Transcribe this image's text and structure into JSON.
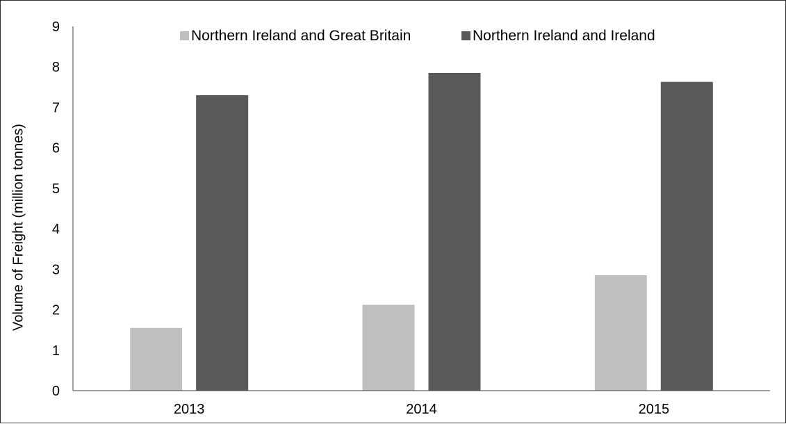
{
  "chart_data": {
    "type": "bar",
    "title": "",
    "xlabel": "",
    "ylabel": "Volume of Freight (million tonnes)",
    "categories": [
      "2013",
      "2014",
      "2015"
    ],
    "series": [
      {
        "name": "Northern Ireland and Great Britain",
        "color": "#bfbfbf",
        "values": [
          1.55,
          2.12,
          2.85
        ]
      },
      {
        "name": "Northern Ireland and Ireland",
        "color": "#595959",
        "values": [
          7.3,
          7.85,
          7.63
        ]
      }
    ],
    "ylim": [
      0,
      9
    ],
    "yticks": [
      "0",
      "1",
      "2",
      "3",
      "4",
      "5",
      "6",
      "7",
      "8",
      "9"
    ],
    "grid": false,
    "legend_position": "top"
  }
}
